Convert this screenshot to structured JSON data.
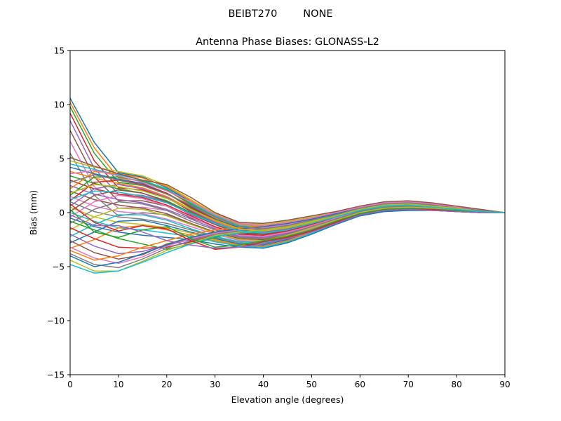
{
  "figure": {
    "suptitle": "BEIBT270        NONE"
  },
  "chart_data": {
    "type": "line",
    "title": "Antenna Phase Biases: GLONASS-L2",
    "xlabel": "Elevation angle (degrees)",
    "ylabel": "Bias (mm)",
    "xlim": [
      0,
      90
    ],
    "ylim": [
      -15,
      15
    ],
    "xticks": [
      0,
      10,
      20,
      30,
      40,
      50,
      60,
      70,
      80,
      90
    ],
    "xtick_labels": [
      "0",
      "10",
      "20",
      "30",
      "40",
      "50",
      "60",
      "70",
      "80",
      "90"
    ],
    "yticks": [
      -15,
      -10,
      -5,
      0,
      5,
      10,
      15
    ],
    "ytick_labels": [
      "−15",
      "−10",
      "−5",
      "0",
      "5",
      "10",
      "15"
    ],
    "grid": false,
    "legend": "none",
    "colors": [
      "#1f77b4",
      "#ff7f0e",
      "#2ca02c",
      "#d62728",
      "#9467bd",
      "#8c564b",
      "#e377c2",
      "#7f7f7f",
      "#bcbd22",
      "#17becf"
    ],
    "x": [
      0,
      5,
      10,
      15,
      20,
      25,
      30,
      35,
      40,
      45,
      50,
      55,
      60,
      65,
      70,
      75,
      80,
      85,
      90
    ],
    "series": [
      {
        "values": [
          10.6,
          6.5,
          3.7,
          3.3,
          2.3,
          1.0,
          -0.3,
          -1.2,
          -1.4,
          -1.2,
          -0.8,
          -0.3,
          0.2,
          0.6,
          0.7,
          0.6,
          0.4,
          0.2,
          0.0
        ]
      },
      {
        "values": [
          10.2,
          6.0,
          3.2,
          2.9,
          2.1,
          0.7,
          -0.5,
          -1.4,
          -1.6,
          -1.3,
          -0.9,
          -0.4,
          0.1,
          0.5,
          0.6,
          0.5,
          0.3,
          0.1,
          0.0
        ]
      },
      {
        "values": [
          9.8,
          5.5,
          2.8,
          2.5,
          1.8,
          0.4,
          -0.7,
          -1.6,
          -1.8,
          -1.5,
          -1.0,
          -0.5,
          0.0,
          0.4,
          0.5,
          0.4,
          0.3,
          0.1,
          0.0
        ]
      },
      {
        "values": [
          9.2,
          4.8,
          2.3,
          2.1,
          1.4,
          0.1,
          -0.9,
          -1.8,
          -2.0,
          -1.7,
          -1.2,
          -0.6,
          0.0,
          0.4,
          0.5,
          0.4,
          0.2,
          0.1,
          0.0
        ]
      },
      {
        "values": [
          8.5,
          4.1,
          1.7,
          1.6,
          1.0,
          -0.2,
          -1.1,
          -2.0,
          -2.2,
          -1.9,
          -1.3,
          -0.7,
          -0.1,
          0.3,
          0.4,
          0.3,
          0.2,
          0.1,
          0.0
        ]
      },
      {
        "values": [
          7.6,
          3.3,
          1.1,
          1.1,
          0.6,
          -0.5,
          -1.3,
          -2.2,
          -2.4,
          -2.0,
          -1.4,
          -0.8,
          -0.2,
          0.2,
          0.3,
          0.3,
          0.2,
          0.1,
          0.0
        ]
      },
      {
        "values": [
          6.6,
          2.4,
          0.4,
          0.5,
          0.2,
          -0.8,
          -1.6,
          -2.4,
          -2.6,
          -2.2,
          -1.6,
          -0.9,
          -0.2,
          0.2,
          0.3,
          0.2,
          0.1,
          0.0,
          0.0
        ]
      },
      {
        "values": [
          5.5,
          1.6,
          -0.3,
          0.0,
          -0.2,
          -1.1,
          -1.8,
          -2.6,
          -2.8,
          -2.4,
          -1.7,
          -1.0,
          -0.3,
          0.1,
          0.2,
          0.2,
          0.1,
          0.0,
          0.0
        ]
      },
      {
        "values": [
          4.8,
          4.2,
          3.8,
          3.4,
          2.5,
          1.2,
          -0.1,
          -1.0,
          -1.1,
          -0.8,
          -0.4,
          0.0,
          0.5,
          0.9,
          1.0,
          0.8,
          0.5,
          0.2,
          0.0
        ]
      },
      {
        "values": [
          4.5,
          4.0,
          3.5,
          3.0,
          2.2,
          0.9,
          -0.3,
          -1.2,
          -1.3,
          -1.0,
          -0.6,
          -0.1,
          0.4,
          0.8,
          0.9,
          0.7,
          0.4,
          0.2,
          0.0
        ]
      },
      {
        "values": [
          4.2,
          3.6,
          3.1,
          2.7,
          1.8,
          0.6,
          -0.6,
          -1.4,
          -1.5,
          -1.2,
          -0.7,
          -0.2,
          0.4,
          0.7,
          0.8,
          0.6,
          0.4,
          0.2,
          0.0
        ]
      },
      {
        "values": [
          3.8,
          3.2,
          2.7,
          2.3,
          1.5,
          0.3,
          -0.8,
          -1.6,
          -1.7,
          -1.4,
          -0.9,
          -0.3,
          0.3,
          0.7,
          0.8,
          0.6,
          0.3,
          0.1,
          0.0
        ]
      },
      {
        "values": [
          3.4,
          2.7,
          2.2,
          1.8,
          1.1,
          0.0,
          -1.0,
          -1.8,
          -1.9,
          -1.6,
          -1.0,
          -0.4,
          0.2,
          0.6,
          0.7,
          0.5,
          0.3,
          0.1,
          0.0
        ]
      },
      {
        "values": [
          3.0,
          2.2,
          1.7,
          1.4,
          0.7,
          -0.3,
          -1.3,
          -2.0,
          -2.1,
          -1.7,
          -1.1,
          -0.5,
          0.1,
          0.5,
          0.6,
          0.5,
          0.3,
          0.1,
          0.0
        ]
      },
      {
        "values": [
          2.5,
          1.7,
          1.2,
          0.9,
          0.3,
          -0.6,
          -1.5,
          -2.2,
          -2.3,
          -1.9,
          -1.3,
          -0.6,
          0.1,
          0.5,
          0.6,
          0.4,
          0.2,
          0.1,
          0.0
        ]
      },
      {
        "values": [
          2.0,
          1.2,
          0.7,
          0.4,
          -0.1,
          -1.0,
          -1.8,
          -2.4,
          -2.5,
          -2.1,
          -1.4,
          -0.7,
          0.0,
          0.4,
          0.5,
          0.4,
          0.2,
          0.1,
          0.0
        ]
      },
      {
        "values": [
          1.5,
          0.6,
          0.1,
          -0.1,
          -0.6,
          -1.3,
          -2.0,
          -2.6,
          -2.7,
          -2.2,
          -1.5,
          -0.8,
          -0.1,
          0.3,
          0.4,
          0.3,
          0.2,
          0.0,
          0.0
        ]
      },
      {
        "values": [
          1.0,
          0.1,
          -0.4,
          -0.6,
          -1.0,
          -1.6,
          -2.3,
          -2.8,
          -2.9,
          -2.4,
          -1.7,
          -0.9,
          -0.2,
          0.2,
          0.3,
          0.3,
          0.1,
          0.0,
          0.0
        ]
      },
      {
        "values": [
          0.5,
          -0.4,
          -0.9,
          -1.1,
          -1.4,
          -1.9,
          -2.5,
          -3.0,
          -3.1,
          -2.6,
          -1.8,
          -1.0,
          -0.2,
          0.2,
          0.3,
          0.2,
          0.1,
          0.0,
          0.0
        ]
      },
      {
        "values": [
          0.0,
          -0.8,
          -1.4,
          -1.6,
          -1.9,
          -2.2,
          -2.7,
          -3.1,
          -3.2,
          -2.7,
          -1.9,
          -1.1,
          -0.3,
          0.1,
          0.2,
          0.2,
          0.1,
          0.0,
          0.0
        ]
      },
      {
        "values": [
          -0.5,
          -1.3,
          -1.8,
          -2.1,
          -2.3,
          -2.5,
          -2.9,
          -3.2,
          -3.3,
          -2.8,
          -2.0,
          -1.1,
          -0.3,
          0.1,
          0.2,
          0.2,
          0.1,
          0.0,
          0.0
        ]
      },
      {
        "values": [
          2.2,
          3.8,
          3.6,
          3.2,
          2.4,
          1.1,
          -0.2,
          -1.1,
          -1.2,
          -0.9,
          -0.5,
          0.0,
          0.5,
          0.9,
          1.0,
          0.8,
          0.5,
          0.2,
          0.0
        ]
      },
      {
        "values": [
          1.6,
          3.3,
          3.3,
          2.9,
          2.1,
          0.8,
          -0.4,
          -1.3,
          -1.4,
          -1.1,
          -0.6,
          -0.1,
          0.4,
          0.8,
          0.9,
          0.7,
          0.4,
          0.2,
          0.0
        ]
      },
      {
        "values": [
          1.1,
          2.8,
          3.0,
          2.6,
          1.8,
          0.5,
          -0.7,
          -1.5,
          -1.6,
          -1.3,
          -0.8,
          -0.2,
          0.3,
          0.7,
          0.8,
          0.6,
          0.4,
          0.2,
          0.0
        ]
      },
      {
        "values": [
          0.6,
          2.2,
          2.6,
          2.2,
          1.4,
          0.2,
          -0.9,
          -1.7,
          -1.8,
          -1.5,
          -0.9,
          -0.3,
          0.3,
          0.7,
          0.8,
          0.6,
          0.3,
          0.1,
          0.0
        ]
      },
      {
        "values": [
          0.1,
          1.6,
          2.1,
          1.8,
          1.0,
          -0.1,
          -1.1,
          -1.9,
          -2.0,
          -1.6,
          -1.0,
          -0.4,
          0.2,
          0.6,
          0.7,
          0.5,
          0.3,
          0.1,
          0.0
        ]
      },
      {
        "values": [
          -0.4,
          1.0,
          1.6,
          1.3,
          0.6,
          -0.4,
          -1.4,
          -2.1,
          -2.2,
          -1.8,
          -1.2,
          -0.5,
          0.1,
          0.5,
          0.6,
          0.5,
          0.3,
          0.1,
          0.0
        ]
      },
      {
        "values": [
          -1.0,
          0.3,
          1.0,
          0.8,
          0.2,
          -0.8,
          -1.6,
          -2.3,
          -2.4,
          -2.0,
          -1.3,
          -0.6,
          0.1,
          0.5,
          0.6,
          0.4,
          0.2,
          0.1,
          0.0
        ]
      },
      {
        "values": [
          -1.6,
          -0.4,
          0.4,
          0.3,
          -0.3,
          -1.1,
          -1.9,
          -2.5,
          -2.6,
          -2.1,
          -1.4,
          -0.7,
          0.0,
          0.4,
          0.5,
          0.4,
          0.2,
          0.1,
          0.0
        ]
      },
      {
        "values": [
          -2.2,
          -1.1,
          -0.2,
          -0.2,
          -0.7,
          -1.5,
          -2.2,
          -2.7,
          -2.8,
          -2.3,
          -1.6,
          -0.8,
          -0.1,
          0.3,
          0.4,
          0.3,
          0.2,
          0.0,
          0.0
        ]
      },
      {
        "values": [
          -2.8,
          -1.8,
          -0.8,
          -0.7,
          -1.2,
          -1.8,
          -2.4,
          -2.9,
          -3.0,
          -2.5,
          -1.7,
          -0.9,
          -0.2,
          0.2,
          0.3,
          0.3,
          0.1,
          0.0,
          0.0
        ]
      },
      {
        "values": [
          -3.3,
          -2.5,
          -1.4,
          -1.2,
          -1.6,
          -2.1,
          -2.6,
          -3.0,
          -3.1,
          -2.6,
          -1.8,
          -1.0,
          -0.2,
          0.2,
          0.3,
          0.2,
          0.1,
          0.0,
          0.0
        ]
      },
      {
        "values": [
          -0.8,
          -1.6,
          -2.4,
          -2.9,
          -3.4,
          -2.9,
          -2.3,
          -1.8,
          -1.6,
          -1.3,
          -0.8,
          -0.2,
          0.4,
          0.8,
          0.9,
          0.7,
          0.4,
          0.2,
          0.0
        ]
      },
      {
        "values": [
          -1.4,
          -2.4,
          -3.2,
          -3.3,
          -3.2,
          -2.7,
          -2.1,
          -1.7,
          -1.5,
          -1.2,
          -0.7,
          -0.2,
          0.4,
          0.8,
          0.9,
          0.7,
          0.4,
          0.2,
          0.0
        ]
      },
      {
        "values": [
          -2.0,
          -3.1,
          -3.8,
          -3.6,
          -3.0,
          -2.5,
          -2.0,
          -1.6,
          -1.4,
          -1.1,
          -0.7,
          -0.1,
          0.4,
          0.8,
          0.9,
          0.7,
          0.4,
          0.2,
          0.0
        ]
      },
      {
        "values": [
          -2.6,
          -3.7,
          -4.3,
          -3.9,
          -2.9,
          -2.3,
          -1.8,
          -1.5,
          -1.3,
          -1.0,
          -0.6,
          -0.1,
          0.5,
          0.9,
          1.0,
          0.8,
          0.5,
          0.2,
          0.0
        ]
      },
      {
        "values": [
          -3.2,
          -4.2,
          -4.7,
          -4.1,
          -3.1,
          -2.4,
          -1.9,
          -1.6,
          -1.4,
          -1.1,
          -0.6,
          -0.1,
          0.4,
          0.8,
          0.9,
          0.7,
          0.4,
          0.2,
          0.0
        ]
      },
      {
        "values": [
          -3.8,
          -4.8,
          -5.1,
          -4.3,
          -3.3,
          -2.6,
          -2.0,
          -1.7,
          -1.5,
          -1.2,
          -0.7,
          -0.2,
          0.4,
          0.8,
          0.9,
          0.7,
          0.4,
          0.2,
          0.0
        ]
      },
      {
        "values": [
          -4.4,
          -5.4,
          -5.4,
          -4.5,
          -3.5,
          -2.8,
          -2.1,
          -1.8,
          -1.6,
          -1.3,
          -0.8,
          -0.2,
          0.3,
          0.7,
          0.8,
          0.6,
          0.4,
          0.2,
          0.0
        ]
      },
      {
        "values": [
          -4.8,
          -5.6,
          -5.4,
          -4.6,
          -3.7,
          -2.9,
          -2.2,
          -1.9,
          -1.7,
          -1.4,
          -0.9,
          -0.3,
          0.3,
          0.7,
          0.8,
          0.6,
          0.4,
          0.1,
          0.0
        ]
      },
      {
        "values": [
          -4.0,
          -5.0,
          -4.6,
          -3.8,
          -3.0,
          -2.3,
          -1.8,
          -1.5,
          -1.3,
          -1.0,
          -0.6,
          -0.1,
          0.4,
          0.8,
          0.9,
          0.7,
          0.4,
          0.2,
          0.0
        ]
      },
      {
        "values": [
          -3.5,
          -4.4,
          -4.0,
          -3.2,
          -2.6,
          -2.0,
          -1.6,
          -1.4,
          -1.2,
          -0.9,
          -0.5,
          0.0,
          0.5,
          0.9,
          1.0,
          0.8,
          0.5,
          0.2,
          0.0
        ]
      },
      {
        "values": [
          0.3,
          -1.8,
          -2.3,
          -1.6,
          -1.3,
          -2.4,
          -3.2,
          -3.0,
          -2.6,
          -2.2,
          -1.6,
          -0.8,
          -0.1,
          0.3,
          0.4,
          0.3,
          0.2,
          0.0,
          0.0
        ]
      },
      {
        "values": [
          0.8,
          -0.9,
          -1.7,
          -1.2,
          -1.5,
          -2.6,
          -3.4,
          -3.2,
          -2.7,
          -2.3,
          -1.7,
          -0.9,
          -0.2,
          0.2,
          0.3,
          0.3,
          0.1,
          0.0,
          0.0
        ]
      },
      {
        "values": [
          -0.2,
          -1.2,
          -1.2,
          -1.8,
          -2.6,
          -3.0,
          -3.3,
          -3.2,
          -2.9,
          -2.4,
          -1.8,
          -1.0,
          -0.2,
          0.2,
          0.3,
          0.2,
          0.1,
          0.0,
          0.0
        ]
      },
      {
        "values": [
          5.1,
          4.3,
          3.6,
          3.0,
          2.6,
          1.4,
          0.0,
          -0.9,
          -1.0,
          -0.7,
          -0.3,
          0.1,
          0.6,
          1.0,
          1.1,
          0.9,
          0.6,
          0.3,
          0.0
        ]
      },
      {
        "values": [
          3.6,
          3.9,
          3.4,
          2.8,
          2.0,
          1.0,
          -0.2,
          -1.0,
          -1.2,
          -0.9,
          -0.5,
          0.0,
          0.5,
          0.9,
          1.0,
          0.8,
          0.5,
          0.2,
          0.0
        ]
      },
      {
        "values": [
          2.8,
          3.5,
          3.0,
          2.5,
          1.7,
          0.7,
          -0.4,
          -1.3,
          -1.5,
          -1.2,
          -0.7,
          -0.2,
          0.4,
          0.8,
          0.9,
          0.7,
          0.4,
          0.2,
          0.0
        ]
      },
      {
        "values": [
          1.8,
          2.6,
          2.4,
          2.0,
          1.3,
          0.3,
          -0.7,
          -1.5,
          -1.7,
          -1.4,
          -0.9,
          -0.3,
          0.3,
          0.7,
          0.8,
          0.6,
          0.4,
          0.1,
          0.0
        ]
      },
      {
        "values": [
          1.2,
          2.0,
          1.9,
          1.5,
          0.9,
          -0.1,
          -1.0,
          -1.7,
          -1.9,
          -1.6,
          -1.0,
          -0.4,
          0.2,
          0.6,
          0.7,
          0.5,
          0.3,
          0.1,
          0.0
        ]
      }
    ]
  }
}
